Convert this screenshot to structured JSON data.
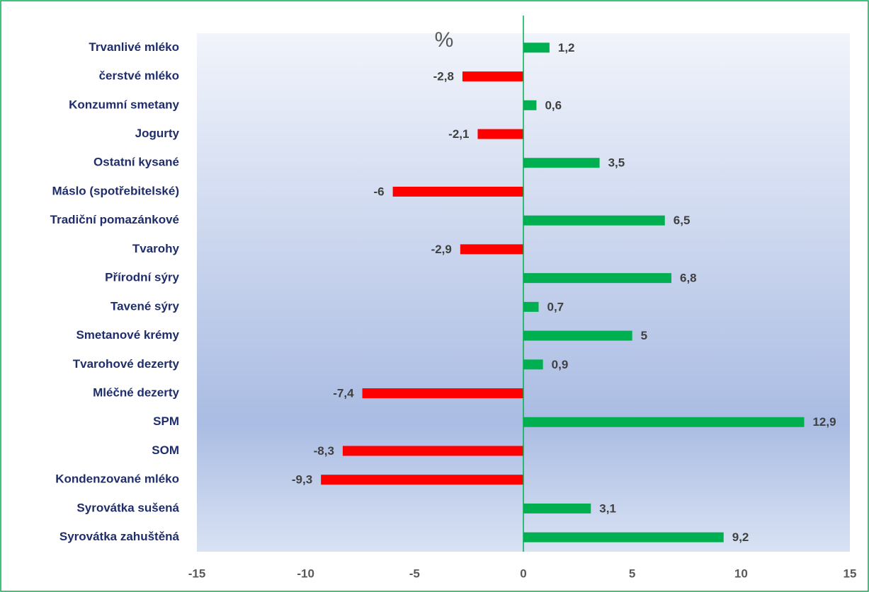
{
  "chart_data": {
    "type": "barh",
    "annotation": "%",
    "categories": [
      "Trvanlivé mléko",
      "čerstvé mléko",
      "Konzumní smetany",
      "Jogurty",
      "Ostatní kysané",
      "Máslo (spotřebitelské)",
      "Tradiční pomazánkové",
      "Tvarohy",
      "Přírodní sýry",
      "Tavené sýry",
      "Smetanové krémy",
      "Tvarohové dezerty",
      "Mléčné dezerty",
      "SPM",
      "SOM",
      "Kondenzované mléko",
      "Syrovátka sušená",
      "Syrovátka zahuštěná"
    ],
    "values": [
      1.2,
      -2.8,
      0.6,
      -2.1,
      3.5,
      -6,
      6.5,
      -2.9,
      6.8,
      0.7,
      5,
      0.9,
      -7.4,
      12.9,
      -8.3,
      -9.3,
      3.1,
      9.2
    ],
    "value_labels": [
      "1,2",
      "-2,8",
      "0,6",
      "-2,1",
      "3,5",
      "-6",
      "6,5",
      "-2,9",
      "6,8",
      "0,7",
      "5",
      "0,9",
      "-7,4",
      "12,9",
      "-8,3",
      "-9,3",
      "3,1",
      "9,2"
    ],
    "positive_color": "#00b050",
    "negative_color": "#ff0000",
    "xlim": [
      -15,
      15
    ],
    "xticks": [
      -15,
      -10,
      -5,
      0,
      5,
      10,
      15
    ]
  }
}
